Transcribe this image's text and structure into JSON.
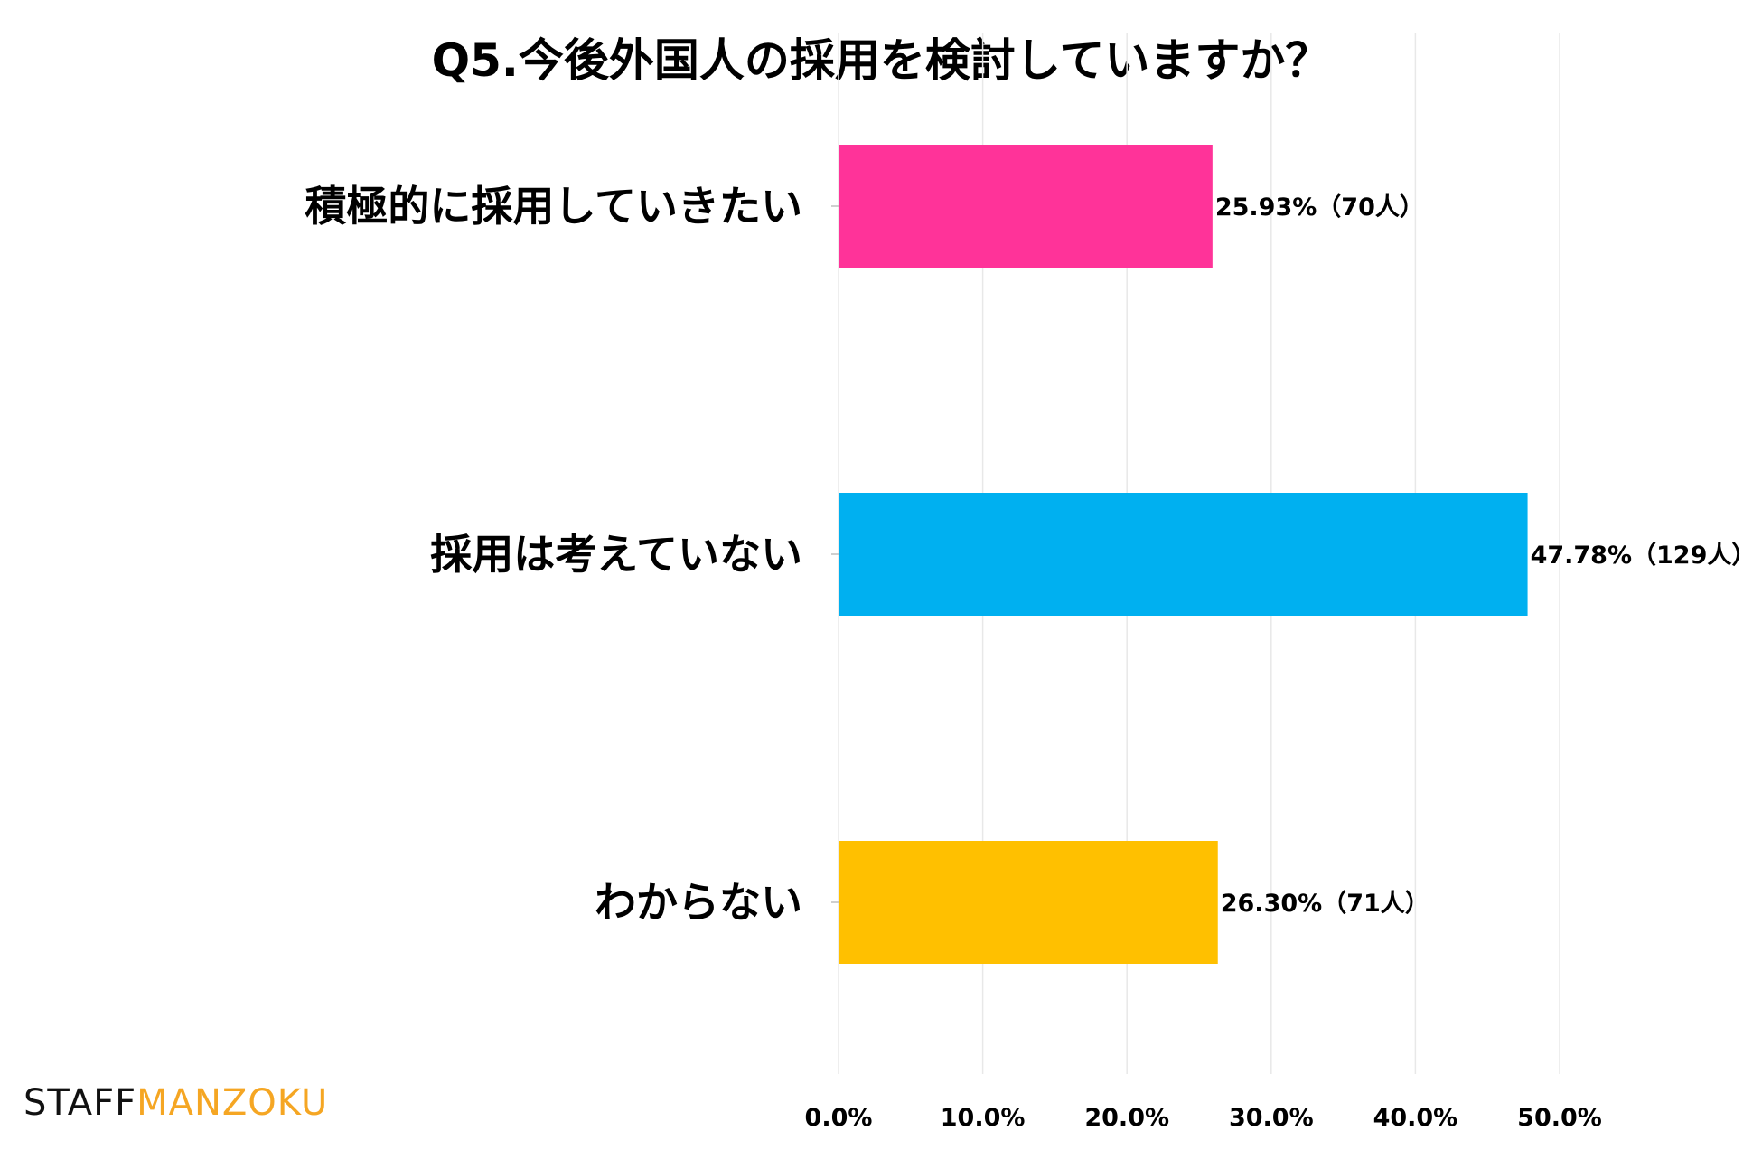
{
  "chart_data": {
    "type": "bar",
    "orientation": "horizontal",
    "title": "Q5.今後外国人の採用を検討していますか？",
    "categories": [
      "積極的に採用していきたい",
      "採用は考えていない",
      "わからない"
    ],
    "values": [
      25.93,
      47.78,
      26.3
    ],
    "data_labels": [
      "25.93%（70人）",
      "47.78%（129人）",
      "26.30%（71人）"
    ],
    "colors": [
      "#ff3399",
      "#00b0f0",
      "#ffc000"
    ],
    "xlim": [
      0,
      50
    ],
    "x_ticks": [
      0,
      10,
      20,
      30,
      40,
      50
    ],
    "x_tick_labels": [
      "0.0%",
      "10.0%",
      "20.0%",
      "30.0%",
      "40.0%",
      "50.0%"
    ],
    "grid": true,
    "legend": "none"
  },
  "logo": {
    "part1": "STAFF",
    "part2": "MANZOKU",
    "colors": [
      "#111111",
      "#f5a623"
    ]
  }
}
